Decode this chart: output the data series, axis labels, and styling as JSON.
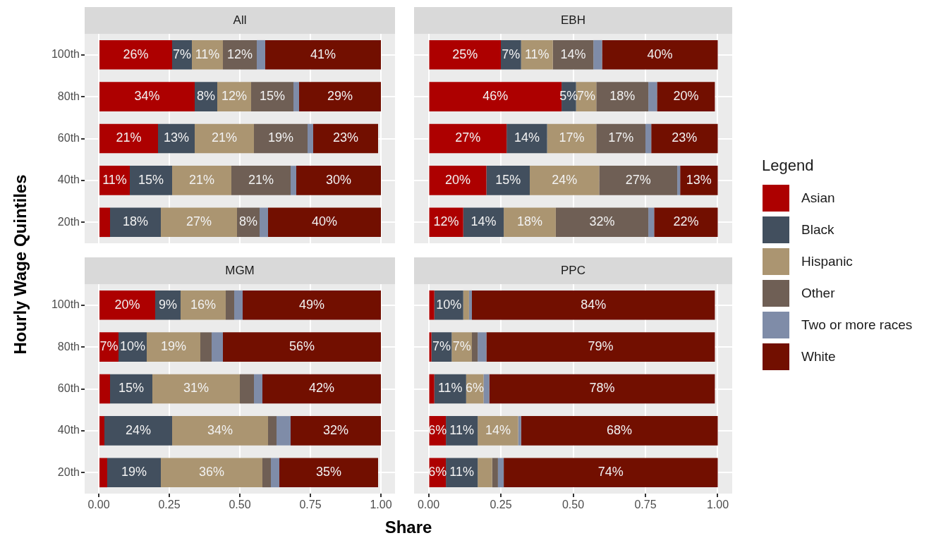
{
  "chart_data": [
    {
      "type": "bar",
      "title": "All",
      "orientation": "horizontal",
      "stacked": true,
      "categories": [
        "100th",
        "80th",
        "60th",
        "40th",
        "20th"
      ],
      "ylabel": "Hourly Wage Quintiles",
      "xlim": [
        -0.05,
        1.05
      ],
      "xticks": [
        0,
        0.25,
        0.5,
        0.75,
        1
      ],
      "grid": true,
      "tick_labels": "y",
      "legend": "right",
      "legend_title": "Legend",
      "series": [
        {
          "name": "Asian",
          "color": "#ad0000",
          "values": [
            0.26,
            0.34,
            0.21,
            0.11,
            0.04
          ],
          "value_labels": [
            "26%",
            "34%",
            "21%",
            "11%",
            null
          ]
        },
        {
          "name": "Black",
          "color": "#424f5e",
          "values": [
            0.07,
            0.08,
            0.13,
            0.15,
            0.18
          ],
          "value_labels": [
            "7%",
            "8%",
            "13%",
            "15%",
            "18%"
          ]
        },
        {
          "name": "Hispanic",
          "color": "#ab9571",
          "values": [
            0.11,
            0.12,
            0.21,
            0.21,
            0.27
          ],
          "value_labels": [
            "11%",
            "12%",
            "21%",
            "21%",
            "27%"
          ]
        },
        {
          "name": "Other",
          "color": "#6f5f55",
          "values": [
            0.12,
            0.15,
            0.19,
            0.21,
            0.08
          ],
          "value_labels": [
            "12%",
            "15%",
            "19%",
            "21%",
            "8%"
          ]
        },
        {
          "name": "Two or more races",
          "color": "#7f8ca8",
          "values": [
            0.03,
            0.02,
            0.02,
            0.02,
            0.03
          ],
          "value_labels": [
            null,
            null,
            null,
            null,
            null
          ]
        },
        {
          "name": "White",
          "color": "#720f00",
          "values": [
            0.41,
            0.29,
            0.23,
            0.3,
            0.4
          ],
          "value_labels": [
            "41%",
            "29%",
            "23%",
            "30%",
            "40%"
          ]
        }
      ]
    },
    {
      "type": "bar",
      "title": "EBH",
      "orientation": "horizontal",
      "stacked": true,
      "categories": [
        null,
        null,
        null,
        null,
        null
      ],
      "xlim": [
        -0.05,
        1.05
      ],
      "xticks": [
        0,
        0.25,
        0.5,
        0.75,
        1
      ],
      "grid": true,
      "tick_labels": false,
      "series": [
        {
          "color": "#ad0000",
          "values": [
            0.25,
            0.46,
            0.27,
            0.2,
            0.12
          ],
          "value_labels": [
            "25%",
            "46%",
            "27%",
            "20%",
            "12%"
          ]
        },
        {
          "color": "#424f5e",
          "values": [
            0.07,
            0.05,
            0.14,
            0.15,
            0.14
          ],
          "value_labels": [
            "7%",
            "5%",
            "14%",
            "15%",
            "14%"
          ]
        },
        {
          "color": "#ab9571",
          "values": [
            0.11,
            0.07,
            0.17,
            0.24,
            0.18
          ],
          "value_labels": [
            "11%",
            "7%",
            "17%",
            "24%",
            "18%"
          ]
        },
        {
          "color": "#6f5f55",
          "values": [
            0.14,
            0.18,
            0.17,
            0.27,
            0.32
          ],
          "value_labels": [
            "14%",
            "18%",
            "17%",
            "27%",
            "32%"
          ]
        },
        {
          "color": "#7f8ca8",
          "values": [
            0.03,
            0.03,
            0.02,
            0.01,
            0.02
          ],
          "value_labels": [
            null,
            null,
            null,
            null,
            null
          ]
        },
        {
          "color": "#720f00",
          "values": [
            0.4,
            0.2,
            0.23,
            0.13,
            0.22
          ],
          "value_labels": [
            "40%",
            "20%",
            "23%",
            "13%",
            "22%"
          ]
        }
      ]
    },
    {
      "type": "bar",
      "title": "MGM",
      "orientation": "horizontal",
      "stacked": true,
      "categories": [
        "100th",
        "80th",
        "60th",
        "40th",
        "20th"
      ],
      "xlabel": "Share",
      "xlim": [
        -0.05,
        1.05
      ],
      "xticks": [
        {
          "value": 0,
          "label": "0.00"
        },
        {
          "value": 0.25,
          "label": "0.25"
        },
        {
          "value": 0.5,
          "label": "0.50"
        },
        {
          "value": 0.75,
          "label": "0.75"
        },
        {
          "value": 1,
          "label": "1.00"
        }
      ],
      "grid": true,
      "series": [
        {
          "color": "#ad0000",
          "values": [
            0.2,
            0.07,
            0.04,
            0.02,
            0.03
          ],
          "value_labels": [
            "20%",
            "7%",
            null,
            null,
            null
          ]
        },
        {
          "color": "#424f5e",
          "values": [
            0.09,
            0.1,
            0.15,
            0.24,
            0.19
          ],
          "value_labels": [
            "9%",
            "10%",
            "15%",
            "24%",
            "19%"
          ]
        },
        {
          "color": "#ab9571",
          "values": [
            0.16,
            0.19,
            0.31,
            0.34,
            0.36
          ],
          "value_labels": [
            "16%",
            "19%",
            "31%",
            "34%",
            "36%"
          ]
        },
        {
          "color": "#6f5f55",
          "values": [
            0.03,
            0.04,
            0.05,
            0.03,
            0.03
          ],
          "value_labels": [
            null,
            null,
            null,
            null,
            null
          ]
        },
        {
          "color": "#7f8ca8",
          "values": [
            0.03,
            0.04,
            0.03,
            0.05,
            0.03
          ],
          "value_labels": [
            null,
            null,
            null,
            null,
            null
          ]
        },
        {
          "color": "#720f00",
          "values": [
            0.49,
            0.56,
            0.42,
            0.32,
            0.35
          ],
          "value_labels": [
            "49%",
            "56%",
            "42%",
            "32%",
            "35%"
          ]
        }
      ]
    },
    {
      "type": "bar",
      "title": "PPC",
      "orientation": "horizontal",
      "stacked": true,
      "categories": [
        null,
        null,
        null,
        null,
        null
      ],
      "xlim": [
        -0.05,
        1.05
      ],
      "xticks": [
        {
          "value": 0,
          "label": "0.00"
        },
        {
          "value": 0.25,
          "label": "0.25"
        },
        {
          "value": 0.5,
          "label": "0.50"
        },
        {
          "value": 0.75,
          "label": "0.75"
        },
        {
          "value": 1,
          "label": "1.00"
        }
      ],
      "grid": true,
      "tick_labels": "x",
      "series": [
        {
          "color": "#ad0000",
          "values": [
            0.02,
            0.01,
            0.02,
            0.06,
            0.06
          ],
          "value_labels": [
            null,
            null,
            null,
            "6%",
            "6%"
          ]
        },
        {
          "color": "#424f5e",
          "values": [
            0.1,
            0.07,
            0.11,
            0.11,
            0.11
          ],
          "value_labels": [
            "10%",
            "7%",
            "11%",
            "11%",
            "11%"
          ]
        },
        {
          "color": "#ab9571",
          "values": [
            0.02,
            0.07,
            0.06,
            0.14,
            0.05
          ],
          "value_labels": [
            null,
            "7%",
            "6%",
            "14%",
            null
          ]
        },
        {
          "color": "#6f5f55",
          "values": [
            0,
            0.02,
            0,
            0,
            0.02
          ],
          "value_labels": [
            null,
            null,
            null,
            null,
            null
          ]
        },
        {
          "color": "#7f8ca8",
          "values": [
            0.01,
            0.03,
            0.02,
            0.01,
            0.02
          ],
          "value_labels": [
            null,
            null,
            null,
            null,
            null
          ]
        },
        {
          "color": "#720f00",
          "values": [
            0.84,
            0.79,
            0.78,
            0.68,
            0.74
          ],
          "value_labels": [
            "84%",
            "79%",
            "78%",
            "68%",
            "74%"
          ]
        }
      ]
    }
  ]
}
